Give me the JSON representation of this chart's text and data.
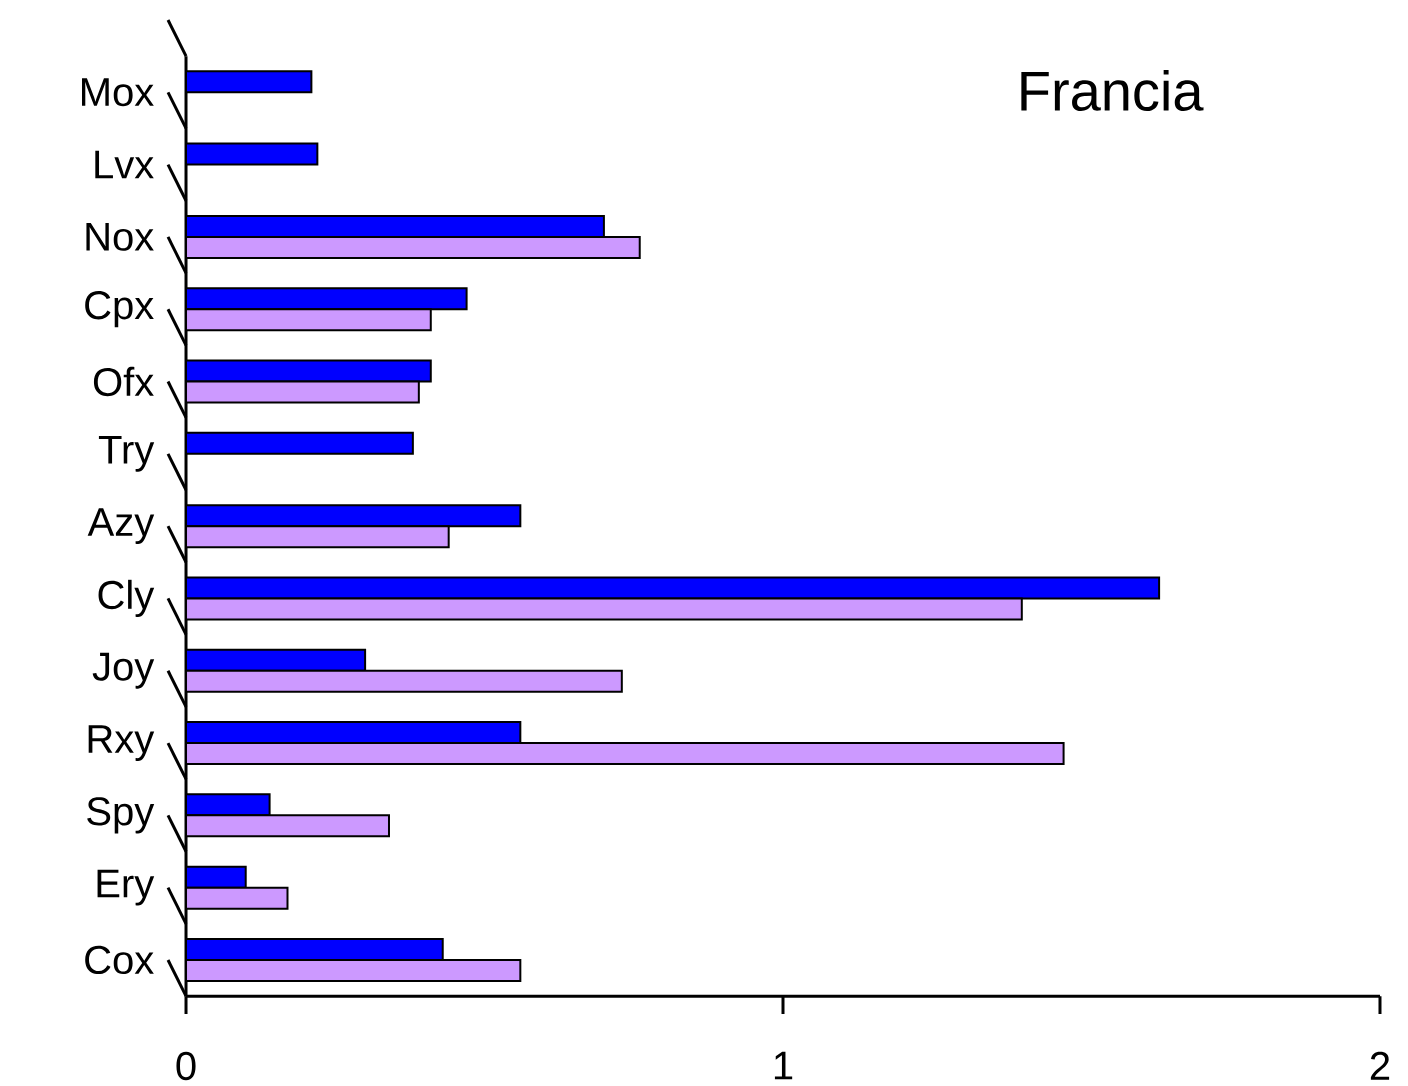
{
  "chart_data": {
    "type": "bar",
    "orientation": "horizontal",
    "title": "Francia",
    "categories": [
      "Mox",
      "Lvx",
      "Nox",
      "Cpx",
      "Ofx",
      "Try",
      "Azy",
      "Cly",
      "Joy",
      "Rxy",
      "Spy",
      "Ery",
      "Cox"
    ],
    "series": [
      {
        "color": "#0000ff",
        "values": [
          0.21,
          0.22,
          0.7,
          0.47,
          0.41,
          0.38,
          0.56,
          1.63,
          0.3,
          0.56,
          0.14,
          0.1,
          0.43
        ]
      },
      {
        "color": "#cc99ff",
        "values": [
          null,
          null,
          0.76,
          0.41,
          0.39,
          null,
          0.44,
          1.4,
          0.73,
          1.47,
          0.34,
          0.17,
          0.56
        ]
      }
    ],
    "xlim": [
      0,
      2
    ],
    "xticks": [
      0,
      1,
      2
    ]
  }
}
